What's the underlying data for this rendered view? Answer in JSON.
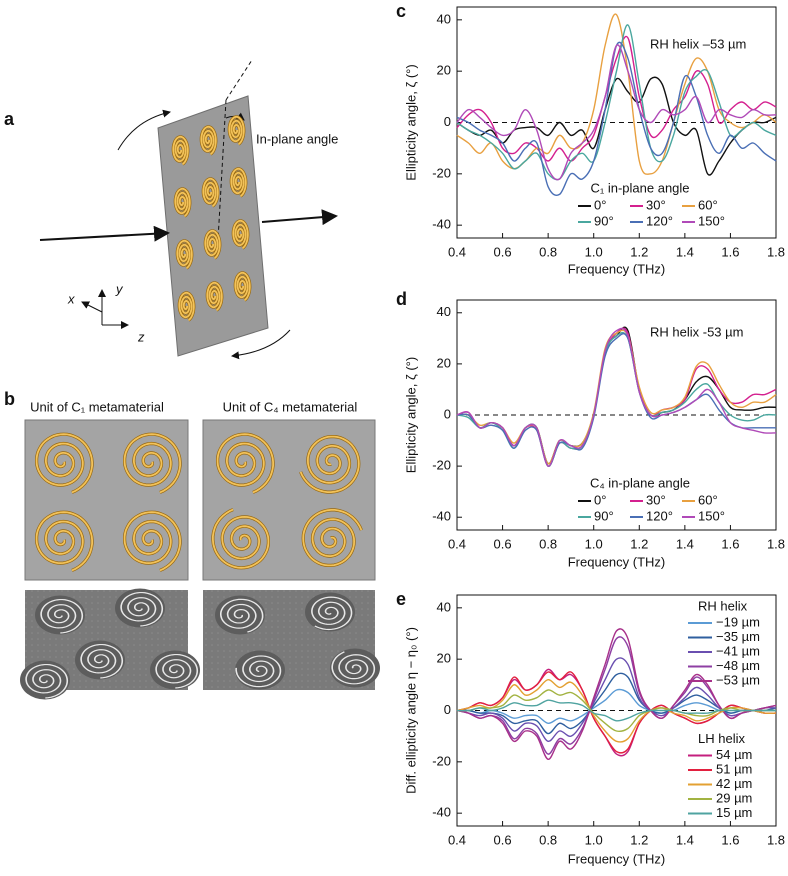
{
  "panel_labels": [
    "a",
    "b",
    "c",
    "d",
    "e"
  ],
  "illustration": {
    "angle_label": "In-plane angle",
    "axes": [
      "x",
      "y",
      "z"
    ]
  },
  "units": [
    "Unit of C₁ metamaterial",
    "Unit of C₄ metamaterial"
  ],
  "chart_data": [
    {
      "type": "line",
      "annotation": "RH helix –53 µm",
      "x_label": "Frequency (THz)",
      "y_label": "Ellipticity angle, ζ (°)",
      "legend_title": "C₁ in-plane angle",
      "zero_line": true,
      "x": [
        0.4,
        0.45,
        0.5,
        0.55,
        0.6,
        0.65,
        0.7,
        0.75,
        0.8,
        0.85,
        0.9,
        0.95,
        1.0,
        1.05,
        1.1,
        1.15,
        1.2,
        1.25,
        1.3,
        1.35,
        1.4,
        1.45,
        1.5,
        1.55,
        1.6,
        1.65,
        1.7,
        1.75,
        1.8
      ],
      "xlim": [
        0.4,
        1.8
      ],
      "ylim": [
        -45,
        45
      ],
      "xticks": [
        0.4,
        0.6,
        0.8,
        {
          "value": 1,
          "label": "1.0"
        },
        1.2,
        1.4,
        1.6,
        1.8
      ],
      "yticks": [
        -40,
        -20,
        0,
        20,
        40
      ],
      "series": [
        {
          "name": "0°",
          "color": "#111111",
          "values": [
            0,
            -3,
            -5,
            -3,
            -8,
            -3,
            -2,
            -2,
            -5,
            0,
            -5,
            -3,
            -10,
            5,
            17,
            12,
            8,
            17,
            15,
            0,
            -5,
            -3,
            -20,
            -15,
            -8,
            -3,
            0,
            0,
            2
          ]
        },
        {
          "name": "30°",
          "color": "#d4208f",
          "values": [
            -2,
            3,
            5,
            0,
            -10,
            -12,
            -8,
            -10,
            -15,
            -10,
            -15,
            -10,
            -5,
            10,
            25,
            33,
            10,
            -5,
            -3,
            5,
            10,
            20,
            15,
            0,
            5,
            8,
            5,
            8,
            6
          ]
        },
        {
          "name": "60°",
          "color": "#e8a040",
          "values": [
            -5,
            -8,
            -12,
            -8,
            -15,
            -18,
            -15,
            -10,
            -12,
            -5,
            -10,
            -8,
            5,
            30,
            42,
            20,
            -15,
            -20,
            -15,
            0,
            15,
            25,
            20,
            5,
            0,
            -2,
            0,
            3,
            0
          ]
        },
        {
          "name": "90°",
          "color": "#4aa79f",
          "values": [
            0,
            -3,
            -5,
            -8,
            -12,
            -18,
            -15,
            -12,
            -20,
            -22,
            -15,
            -12,
            -15,
            0,
            20,
            38,
            15,
            -10,
            -15,
            -5,
            12,
            18,
            20,
            8,
            -5,
            -3,
            0,
            -3,
            -5
          ]
        },
        {
          "name": "120°",
          "color": "#4a6fb5",
          "values": [
            2,
            0,
            -3,
            -5,
            -8,
            -15,
            -10,
            -8,
            -25,
            -28,
            -20,
            -22,
            -15,
            5,
            30,
            25,
            5,
            -10,
            -12,
            0,
            18,
            10,
            -5,
            -12,
            -5,
            -10,
            -8,
            -12,
            -15
          ]
        },
        {
          "name": "150°",
          "color": "#b04ab8",
          "values": [
            0,
            5,
            2,
            -2,
            -5,
            -3,
            5,
            -3,
            -18,
            -22,
            -12,
            -8,
            -3,
            10,
            30,
            20,
            5,
            0,
            5,
            3,
            5,
            10,
            0,
            5,
            3,
            2,
            5,
            3,
            3
          ]
        }
      ]
    },
    {
      "type": "line",
      "annotation": "RH helix -53 µm",
      "x_label": "Frequency (THz)",
      "y_label": "Ellipticity angle, ζ (°)",
      "legend_title": "C₄ in-plane angle",
      "zero_line": true,
      "x": [
        0.4,
        0.45,
        0.5,
        0.55,
        0.6,
        0.65,
        0.7,
        0.75,
        0.8,
        0.85,
        0.9,
        0.95,
        1.0,
        1.05,
        1.1,
        1.15,
        1.2,
        1.25,
        1.3,
        1.35,
        1.4,
        1.45,
        1.5,
        1.55,
        1.6,
        1.65,
        1.7,
        1.75,
        1.8
      ],
      "xlim": [
        0.4,
        1.8
      ],
      "ylim": [
        -45,
        45
      ],
      "xticks": [
        0.4,
        0.6,
        0.8,
        {
          "value": 1,
          "label": "1.0"
        },
        1.2,
        1.4,
        1.6,
        1.8
      ],
      "yticks": [
        -40,
        -20,
        0,
        20,
        40
      ],
      "series": [
        {
          "name": "0°",
          "color": "#111111",
          "values": [
            0,
            0,
            -5,
            -3,
            -5,
            -12,
            -5,
            -5,
            -19,
            -10,
            -12,
            -11,
            0,
            25,
            31,
            33,
            10,
            0,
            1,
            2,
            6,
            13,
            15,
            10,
            3,
            2,
            2,
            3,
            3
          ]
        },
        {
          "name": "30°",
          "color": "#d4208f",
          "values": [
            0,
            1,
            -5,
            -3,
            -5,
            -12,
            -5,
            -6,
            -20,
            -11,
            -13,
            -12,
            0,
            24,
            32,
            32,
            10,
            0,
            2,
            3,
            6,
            18,
            18,
            10,
            5,
            5,
            8,
            8,
            10
          ]
        },
        {
          "name": "60°",
          "color": "#e8a040",
          "values": [
            0,
            0,
            -4,
            -3,
            -5,
            -11,
            -5,
            -5,
            -19,
            -10,
            -12,
            -11,
            1,
            26,
            32,
            31,
            11,
            1,
            2,
            3,
            7,
            19,
            20,
            12,
            5,
            3,
            5,
            5,
            8
          ]
        },
        {
          "name": "90°",
          "color": "#4aa79f",
          "values": [
            0,
            -1,
            -5,
            -3,
            -6,
            -13,
            -5,
            -5,
            -20,
            -11,
            -13,
            -12,
            0,
            24,
            31,
            30,
            9,
            0,
            1,
            2,
            5,
            10,
            12,
            5,
            0,
            -2,
            -2,
            0,
            0
          ]
        },
        {
          "name": "120°",
          "color": "#4a6fb5",
          "values": [
            0,
            0,
            -5,
            -4,
            -6,
            -13,
            -6,
            -6,
            -20,
            -11,
            -12,
            -13,
            -1,
            23,
            30,
            30,
            9,
            -1,
            0,
            1,
            3,
            6,
            8,
            2,
            -3,
            -5,
            -5,
            -5,
            -5
          ]
        },
        {
          "name": "150°",
          "color": "#b04ab8",
          "values": [
            0,
            1,
            -5,
            -3,
            -5,
            -12,
            -5,
            -5,
            -20,
            -10,
            -12,
            -12,
            0,
            25,
            33,
            31,
            9,
            0,
            0,
            1,
            3,
            6,
            10,
            5,
            -3,
            -5,
            -6,
            -7,
            -7
          ]
        }
      ]
    },
    {
      "type": "line",
      "x_label": "Frequency (THz)",
      "y_label": "Diff. ellipticity angle η − η₀ (°)",
      "zero_line": true,
      "x": [
        0.4,
        0.45,
        0.5,
        0.55,
        0.6,
        0.65,
        0.7,
        0.75,
        0.8,
        0.85,
        0.9,
        0.95,
        1.0,
        1.05,
        1.1,
        1.15,
        1.2,
        1.25,
        1.3,
        1.35,
        1.4,
        1.45,
        1.5,
        1.55,
        1.6,
        1.65,
        1.7,
        1.75,
        1.8
      ],
      "xlim": [
        0.4,
        1.8
      ],
      "ylim": [
        -45,
        45
      ],
      "xticks": [
        0.4,
        0.6,
        0.8,
        {
          "value": 1,
          "label": "1.0"
        },
        1.2,
        1.4,
        1.6,
        1.8
      ],
      "yticks": [
        -40,
        -20,
        0,
        20,
        40
      ],
      "series_groups": [
        {
          "name": "RH helix",
          "series": [
            {
              "name": "−19 µm",
              "color": "#5b9bd5",
              "values": [
                0,
                0,
                -1,
                0,
                -1,
                -3,
                -2,
                -2,
                -5,
                -3,
                -4,
                -2,
                1,
                4,
                8,
                7,
                2,
                0,
                -1,
                0,
                2,
                3,
                2,
                0,
                -1,
                0,
                0,
                0,
                0
              ]
            },
            {
              "name": "−35 µm",
              "color": "#2f5f9f",
              "values": [
                0,
                0,
                -1,
                -1,
                -2,
                -5,
                -4,
                -4,
                -9,
                -5,
                -7,
                -4,
                2,
                8,
                14,
                13,
                4,
                0,
                -1,
                1,
                4,
                6,
                4,
                1,
                -1,
                0,
                0,
                0,
                1
              ]
            },
            {
              "name": "−41 µm",
              "color": "#6a4fb0",
              "values": [
                0,
                -1,
                -2,
                -1,
                -3,
                -8,
                -5,
                -6,
                -12,
                -8,
                -10,
                -5,
                3,
                12,
                20,
                18,
                5,
                0,
                -2,
                1,
                5,
                9,
                6,
                1,
                -2,
                -1,
                0,
                1,
                1
              ]
            },
            {
              "name": "−48 µm",
              "color": "#8e3fa3",
              "values": [
                0,
                -1,
                -3,
                -2,
                -4,
                -11,
                -7,
                -9,
                -17,
                -11,
                -13,
                -7,
                4,
                16,
                28,
                25,
                7,
                0,
                -3,
                2,
                7,
                13,
                9,
                2,
                -3,
                -1,
                0,
                1,
                2
              ]
            },
            {
              "name": "−53 µm",
              "color": "#a8308a",
              "values": [
                0,
                -1,
                -3,
                -2,
                -5,
                -12,
                -8,
                -10,
                -19,
                -12,
                -15,
                -8,
                5,
                18,
                31,
                28,
                8,
                0,
                -3,
                2,
                8,
                14,
                10,
                2,
                -3,
                -1,
                0,
                1,
                2
              ]
            }
          ]
        },
        {
          "name": "LH helix",
          "series": [
            {
              "name": "54 µm",
              "color": "#c41f7e",
              "values": [
                0,
                1,
                3,
                2,
                5,
                12,
                8,
                10,
                16,
                12,
                14,
                8,
                -3,
                -10,
                -17,
                -16,
                -5,
                0,
                2,
                -1,
                -3,
                -5,
                -4,
                -1,
                2,
                1,
                0,
                -1,
                -1
              ]
            },
            {
              "name": "51 µm",
              "color": "#e2203f",
              "values": [
                0,
                1,
                3,
                2,
                5,
                13,
                8,
                10,
                15,
                12,
                15,
                8,
                -3,
                -10,
                -16,
                -15,
                -5,
                0,
                2,
                -1,
                -3,
                -5,
                -4,
                -1,
                2,
                1,
                0,
                -1,
                -1
              ]
            },
            {
              "name": "42 µm",
              "color": "#e3a032",
              "values": [
                0,
                1,
                2,
                1,
                4,
                10,
                6,
                8,
                12,
                9,
                11,
                6,
                -2,
                -8,
                -12,
                -11,
                -4,
                0,
                1,
                -1,
                -2,
                -4,
                -3,
                -1,
                1,
                1,
                0,
                -1,
                -1
              ]
            },
            {
              "name": "29 µm",
              "color": "#a2b341",
              "values": [
                0,
                0,
                1,
                1,
                2,
                6,
                4,
                5,
                8,
                6,
                7,
                4,
                -1,
                -5,
                -8,
                -7,
                -2,
                0,
                1,
                0,
                -1,
                -2,
                -2,
                0,
                1,
                0,
                0,
                0,
                0
              ]
            },
            {
              "name": "15 µm",
              "color": "#4fa3a0",
              "values": [
                0,
                0,
                1,
                0,
                1,
                3,
                2,
                2,
                4,
                3,
                3,
                2,
                -1,
                -2,
                -4,
                -3,
                -1,
                0,
                0,
                0,
                -1,
                -1,
                -1,
                0,
                0,
                0,
                0,
                0,
                0
              ]
            }
          ]
        }
      ]
    }
  ]
}
